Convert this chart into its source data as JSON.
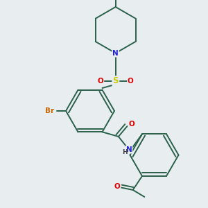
{
  "bg_color": "#e8eef0",
  "bond_color": "#2a6049",
  "atom_colors": {
    "N": "#2020e0",
    "O": "#e00000",
    "S": "#cccc00",
    "Br": "#cc6600",
    "H": "#404040",
    "C": "#2a6049"
  }
}
